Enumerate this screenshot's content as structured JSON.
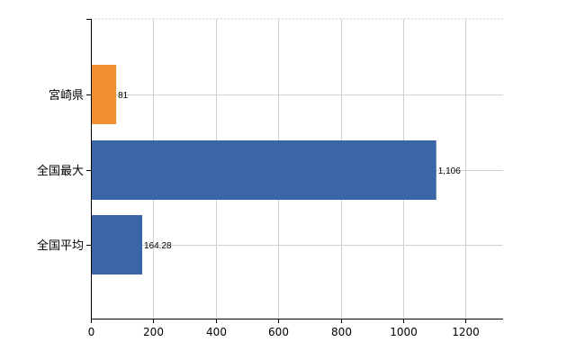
{
  "chart_data": {
    "type": "bar",
    "orientation": "horizontal",
    "categories": [
      "宮崎県",
      "全国最大",
      "全国平均"
    ],
    "values": [
      81,
      1106,
      164.28
    ],
    "value_labels": [
      "81",
      "1,106",
      "164.28"
    ],
    "bar_colors": [
      "#f0902f",
      "#3a65a6",
      "#3a65a6"
    ],
    "x_ticks": [
      "0",
      "200",
      "400",
      "600",
      "800",
      "1000",
      "1200"
    ],
    "xlim": [
      0,
      1320
    ],
    "grid": true,
    "legend": "none"
  }
}
